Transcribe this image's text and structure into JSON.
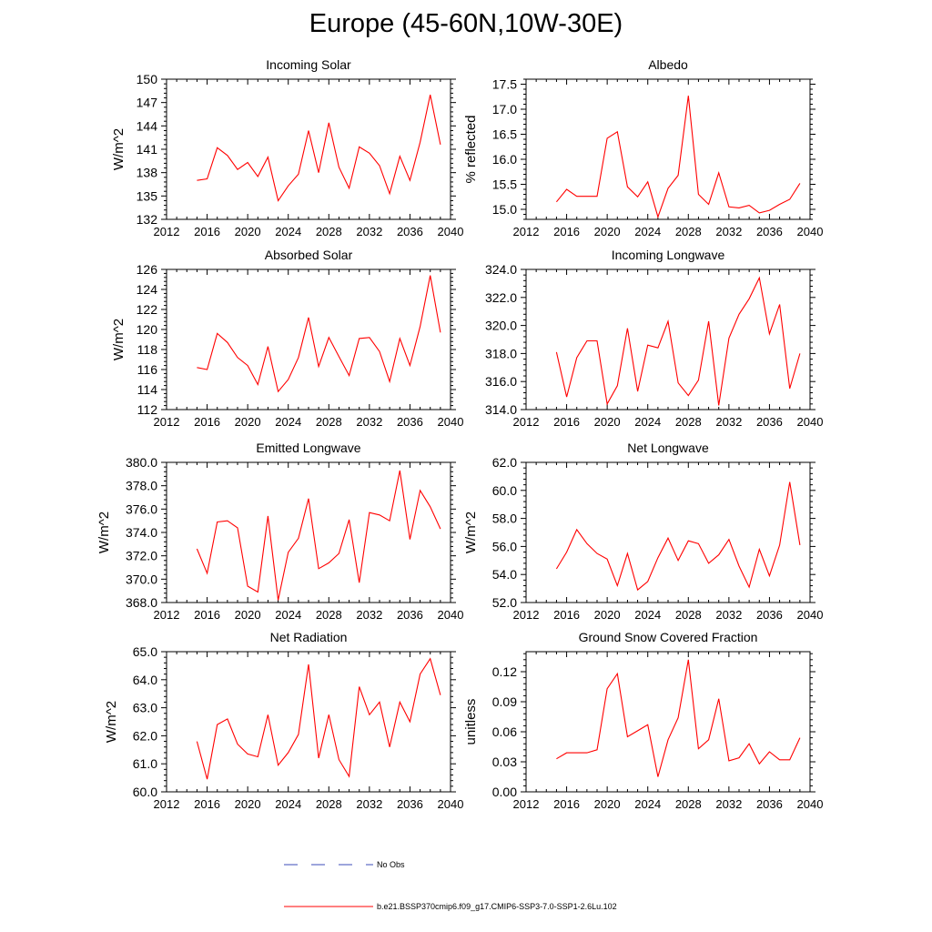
{
  "figure": {
    "title": "Europe (45-60N,10W-30E)"
  },
  "colors": {
    "series": "#ff0000",
    "obs": "#3b4bb8",
    "axis": "#000000"
  },
  "legend": [
    {
      "label": "No Obs",
      "style": "dashed",
      "color": "#3b4bb8"
    },
    {
      "label": "b.e21.BSSP370cmip6.f09_g17.CMIP6-SSP3-7.0-SSP1-2.6Lu.102",
      "style": "solid",
      "color": "#ff0000"
    }
  ],
  "chart_data": [
    {
      "type": "line",
      "title": "Incoming Solar",
      "ylabel": "W/m^2",
      "xlim": [
        2012,
        2040
      ],
      "ylim": [
        132,
        150
      ],
      "xticks": [
        "2012",
        "2016",
        "2020",
        "2024",
        "2028",
        "2032",
        "2036",
        "2040"
      ],
      "yticks": [
        "132",
        "135",
        "138",
        "141",
        "144",
        "147",
        "150"
      ],
      "x": [
        2015,
        2016,
        2017,
        2018,
        2019,
        2020,
        2021,
        2022,
        2023,
        2024,
        2025,
        2026,
        2027,
        2028,
        2029,
        2030,
        2031,
        2032,
        2033,
        2034,
        2035,
        2036,
        2037,
        2038,
        2039
      ],
      "series": [
        {
          "values": [
            137.0,
            137.2,
            141.2,
            140.2,
            138.4,
            139.3,
            137.5,
            140.0,
            134.4,
            136.3,
            137.8,
            143.4,
            138.0,
            144.4,
            138.7,
            136.0,
            141.3,
            140.5,
            138.9,
            135.3,
            140.1,
            137.0,
            141.9,
            148.0,
            141.6
          ]
        }
      ]
    },
    {
      "type": "line",
      "title": "Albedo",
      "ylabel": "% reflected",
      "xlim": [
        2012,
        2040
      ],
      "ylim": [
        14.8,
        17.6
      ],
      "xticks": [
        "2012",
        "2016",
        "2020",
        "2024",
        "2028",
        "2032",
        "2036",
        "2040"
      ],
      "yticks": [
        "15.0",
        "15.5",
        "16.0",
        "16.5",
        "17.0",
        "17.5"
      ],
      "x": [
        2015,
        2016,
        2017,
        2018,
        2019,
        2020,
        2021,
        2022,
        2023,
        2024,
        2025,
        2026,
        2027,
        2028,
        2029,
        2030,
        2031,
        2032,
        2033,
        2034,
        2035,
        2036,
        2037,
        2038,
        2039
      ],
      "series": [
        {
          "values": [
            15.15,
            15.4,
            15.26,
            15.26,
            15.26,
            16.42,
            16.55,
            15.45,
            15.25,
            15.55,
            14.85,
            15.42,
            15.68,
            17.27,
            15.3,
            15.1,
            15.73,
            15.05,
            15.03,
            15.08,
            14.93,
            14.98,
            15.1,
            15.2,
            15.52
          ]
        }
      ]
    },
    {
      "type": "line",
      "title": "Absorbed Solar",
      "ylabel": "W/m^2",
      "xlim": [
        2012,
        2040
      ],
      "ylim": [
        112,
        126
      ],
      "xticks": [
        "2012",
        "2016",
        "2020",
        "2024",
        "2028",
        "2032",
        "2036",
        "2040"
      ],
      "yticks": [
        "112",
        "114",
        "116",
        "118",
        "120",
        "122",
        "124",
        "126"
      ],
      "x": [
        2015,
        2016,
        2017,
        2018,
        2019,
        2020,
        2021,
        2022,
        2023,
        2024,
        2025,
        2026,
        2027,
        2028,
        2029,
        2030,
        2031,
        2032,
        2033,
        2034,
        2035,
        2036,
        2037,
        2038,
        2039
      ],
      "series": [
        {
          "values": [
            116.2,
            116.0,
            119.6,
            118.7,
            117.2,
            116.4,
            114.5,
            118.3,
            113.8,
            115.0,
            117.2,
            121.2,
            116.3,
            119.2,
            117.3,
            115.4,
            119.1,
            119.2,
            117.8,
            114.8,
            119.1,
            116.4,
            120.3,
            125.4,
            119.7
          ]
        }
      ]
    },
    {
      "type": "line",
      "title": "Incoming Longwave",
      "ylabel": "",
      "xlim": [
        2012,
        2040
      ],
      "ylim": [
        314,
        324
      ],
      "xticks": [
        "2012",
        "2016",
        "2020",
        "2024",
        "2028",
        "2032",
        "2036",
        "2040"
      ],
      "yticks": [
        "314.0",
        "316.0",
        "318.0",
        "320.0",
        "322.0",
        "324.0"
      ],
      "x": [
        2015,
        2016,
        2017,
        2018,
        2019,
        2020,
        2021,
        2022,
        2023,
        2024,
        2025,
        2026,
        2027,
        2028,
        2029,
        2030,
        2031,
        2032,
        2033,
        2034,
        2035,
        2036,
        2037,
        2038,
        2039
      ],
      "series": [
        {
          "values": [
            318.1,
            314.9,
            317.7,
            318.9,
            318.9,
            314.4,
            315.7,
            319.8,
            315.3,
            318.6,
            318.4,
            320.3,
            315.9,
            315.0,
            316.1,
            320.3,
            314.3,
            319.1,
            320.8,
            321.9,
            323.4,
            319.4,
            321.5,
            315.5,
            318.0
          ]
        }
      ]
    },
    {
      "type": "line",
      "title": "Emitted Longwave",
      "ylabel": "W/m^2",
      "xlim": [
        2012,
        2040
      ],
      "ylim": [
        368,
        380
      ],
      "xticks": [
        "2012",
        "2016",
        "2020",
        "2024",
        "2028",
        "2032",
        "2036",
        "2040"
      ],
      "yticks": [
        "368.0",
        "370.0",
        "372.0",
        "374.0",
        "376.0",
        "378.0",
        "380.0"
      ],
      "x": [
        2015,
        2016,
        2017,
        2018,
        2019,
        2020,
        2021,
        2022,
        2023,
        2024,
        2025,
        2026,
        2027,
        2028,
        2029,
        2030,
        2031,
        2032,
        2033,
        2034,
        2035,
        2036,
        2037,
        2038,
        2039
      ],
      "series": [
        {
          "values": [
            372.6,
            370.5,
            374.9,
            375.0,
            374.4,
            369.4,
            368.9,
            375.4,
            368.2,
            372.3,
            373.5,
            376.9,
            370.9,
            371.4,
            372.2,
            375.1,
            369.7,
            375.7,
            375.5,
            375.0,
            379.3,
            373.4,
            377.6,
            376.2,
            374.3
          ]
        }
      ]
    },
    {
      "type": "line",
      "title": "Net Longwave",
      "ylabel": "W/m^2",
      "xlim": [
        2012,
        2040
      ],
      "ylim": [
        52,
        62
      ],
      "xticks": [
        "2012",
        "2016",
        "2020",
        "2024",
        "2028",
        "2032",
        "2036",
        "2040"
      ],
      "yticks": [
        "52.0",
        "54.0",
        "56.0",
        "58.0",
        "60.0",
        "62.0"
      ],
      "x": [
        2015,
        2016,
        2017,
        2018,
        2019,
        2020,
        2021,
        2022,
        2023,
        2024,
        2025,
        2026,
        2027,
        2028,
        2029,
        2030,
        2031,
        2032,
        2033,
        2034,
        2035,
        2036,
        2037,
        2038,
        2039
      ],
      "series": [
        {
          "values": [
            54.4,
            55.6,
            57.2,
            56.2,
            55.5,
            55.1,
            53.2,
            55.5,
            52.9,
            53.5,
            55.2,
            56.6,
            55.0,
            56.4,
            56.2,
            54.8,
            55.4,
            56.5,
            54.6,
            53.1,
            55.8,
            53.9,
            56.1,
            60.6,
            56.1
          ]
        }
      ]
    },
    {
      "type": "line",
      "title": "Net Radiation",
      "ylabel": "W/m^2",
      "xlim": [
        2012,
        2040
      ],
      "ylim": [
        60,
        65
      ],
      "xticks": [
        "2012",
        "2016",
        "2020",
        "2024",
        "2028",
        "2032",
        "2036",
        "2040"
      ],
      "yticks": [
        "60.0",
        "61.0",
        "62.0",
        "63.0",
        "64.0",
        "65.0"
      ],
      "x": [
        2015,
        2016,
        2017,
        2018,
        2019,
        2020,
        2021,
        2022,
        2023,
        2024,
        2025,
        2026,
        2027,
        2028,
        2029,
        2030,
        2031,
        2032,
        2033,
        2034,
        2035,
        2036,
        2037,
        2038,
        2039
      ],
      "series": [
        {
          "values": [
            61.8,
            60.45,
            62.4,
            62.6,
            61.7,
            61.35,
            61.25,
            62.75,
            60.95,
            61.4,
            62.05,
            64.55,
            61.2,
            62.75,
            61.15,
            60.55,
            63.75,
            62.75,
            63.2,
            61.6,
            63.2,
            62.5,
            64.2,
            64.75,
            63.45
          ]
        }
      ]
    },
    {
      "type": "line",
      "title": "Ground Snow Covered Fraction",
      "ylabel": "unitless",
      "xlim": [
        2012,
        2040
      ],
      "ylim": [
        0,
        0.14
      ],
      "xticks": [
        "2012",
        "2016",
        "2020",
        "2024",
        "2028",
        "2032",
        "2036",
        "2040"
      ],
      "yticks": [
        "0.00",
        "0.03",
        "0.06",
        "0.09",
        "0.12"
      ],
      "x": [
        2015,
        2016,
        2017,
        2018,
        2019,
        2020,
        2021,
        2022,
        2023,
        2024,
        2025,
        2026,
        2027,
        2028,
        2029,
        2030,
        2031,
        2032,
        2033,
        2034,
        2035,
        2036,
        2037,
        2038,
        2039
      ],
      "series": [
        {
          "values": [
            0.033,
            0.039,
            0.039,
            0.039,
            0.042,
            0.103,
            0.118,
            0.055,
            0.061,
            0.067,
            0.015,
            0.052,
            0.074,
            0.132,
            0.043,
            0.052,
            0.093,
            0.031,
            0.034,
            0.048,
            0.028,
            0.04,
            0.032,
            0.032,
            0.054
          ]
        }
      ]
    }
  ]
}
